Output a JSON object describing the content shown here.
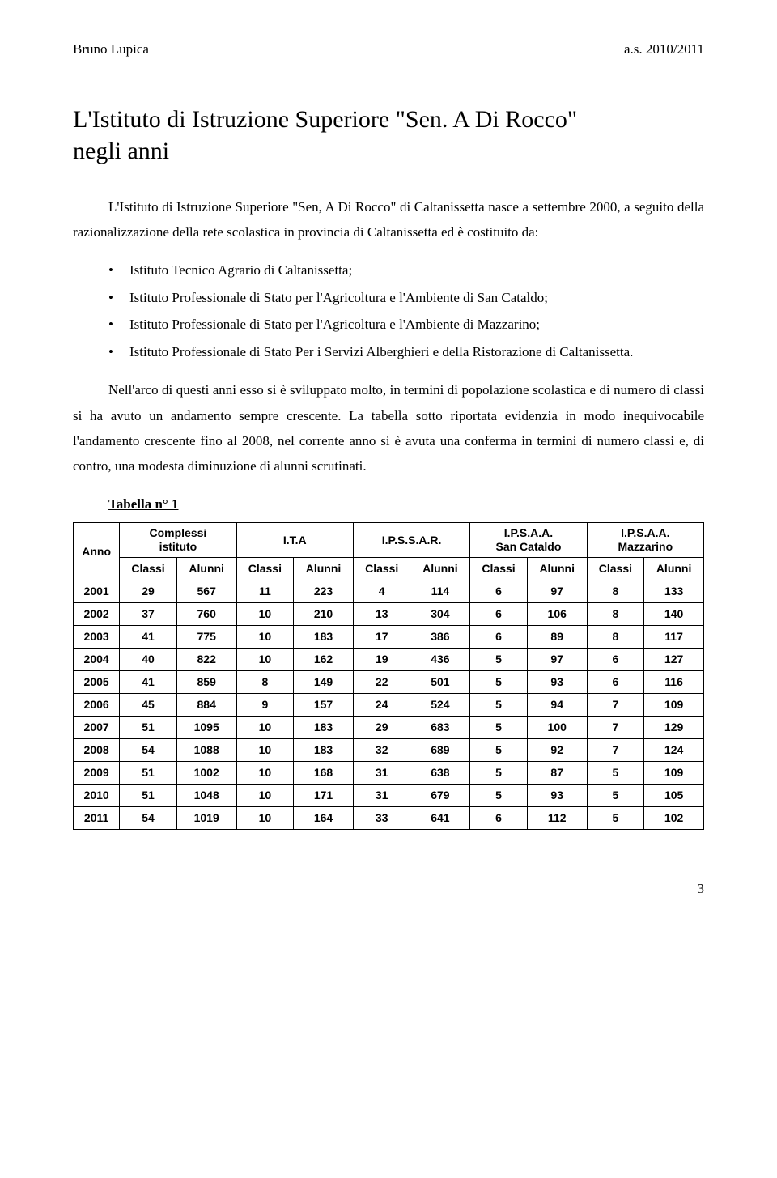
{
  "header": {
    "left": "Bruno Lupica",
    "right": "a.s. 2010/2011"
  },
  "title_line1": "L'Istituto di Istruzione Superiore \"Sen. A Di Rocco\"",
  "title_line2": "negli anni",
  "intro": "L'Istituto di Istruzione Superiore \"Sen, A Di Rocco\" di Caltanissetta nasce a settembre 2000, a seguito della razionalizzazione della rete scolastica in provincia di Caltanissetta ed è costituito da:",
  "bullets": [
    "Istituto Tecnico Agrario di Caltanissetta;",
    "Istituto Professionale di Stato per l'Agricoltura e l'Ambiente di San Cataldo;",
    "Istituto Professionale di Stato per l'Agricoltura e l'Ambiente di Mazzarino;",
    "Istituto Professionale di Stato Per i Servizi Alberghieri e della Ristorazione di Caltanissetta."
  ],
  "para2": "Nell'arco di questi anni esso si è sviluppato molto, in termini di popolazione scolastica e di numero di classi si ha avuto un andamento sempre crescente. La tabella sotto riportata evidenzia in modo inequivocabile l'andamento crescente fino al 2008, nel corrente anno si è avuta una conferma in termini di numero classi e, di contro, una modesta diminuzione di alunni scrutinati.",
  "table_caption": "Tabella n° 1",
  "table": {
    "row_header": "Anno",
    "groups": [
      {
        "label": "Complessi\nistituto"
      },
      {
        "label": "I.T.A"
      },
      {
        "label": "I.P.S.S.A.R."
      },
      {
        "label": "I.P.S.A.A.\nSan Cataldo"
      },
      {
        "label": "I.P.S.A.A.\nMazzarino"
      }
    ],
    "sub_cols": [
      "Classi",
      "Alunni"
    ],
    "rows": [
      {
        "year": "2001",
        "cells": [
          "29",
          "567",
          "11",
          "223",
          "4",
          "114",
          "6",
          "97",
          "8",
          "133"
        ]
      },
      {
        "year": "2002",
        "cells": [
          "37",
          "760",
          "10",
          "210",
          "13",
          "304",
          "6",
          "106",
          "8",
          "140"
        ]
      },
      {
        "year": "2003",
        "cells": [
          "41",
          "775",
          "10",
          "183",
          "17",
          "386",
          "6",
          "89",
          "8",
          "117"
        ]
      },
      {
        "year": "2004",
        "cells": [
          "40",
          "822",
          "10",
          "162",
          "19",
          "436",
          "5",
          "97",
          "6",
          "127"
        ]
      },
      {
        "year": "2005",
        "cells": [
          "41",
          "859",
          "8",
          "149",
          "22",
          "501",
          "5",
          "93",
          "6",
          "116"
        ]
      },
      {
        "year": "2006",
        "cells": [
          "45",
          "884",
          "9",
          "157",
          "24",
          "524",
          "5",
          "94",
          "7",
          "109"
        ]
      },
      {
        "year": "2007",
        "cells": [
          "51",
          "1095",
          "10",
          "183",
          "29",
          "683",
          "5",
          "100",
          "7",
          "129"
        ]
      },
      {
        "year": "2008",
        "cells": [
          "54",
          "1088",
          "10",
          "183",
          "32",
          "689",
          "5",
          "92",
          "7",
          "124"
        ]
      },
      {
        "year": "2009",
        "cells": [
          "51",
          "1002",
          "10",
          "168",
          "31",
          "638",
          "5",
          "87",
          "5",
          "109"
        ]
      },
      {
        "year": "2010",
        "cells": [
          "51",
          "1048",
          "10",
          "171",
          "31",
          "679",
          "5",
          "93",
          "5",
          "105"
        ]
      },
      {
        "year": "2011",
        "cells": [
          "54",
          "1019",
          "10",
          "164",
          "33",
          "641",
          "6",
          "112",
          "5",
          "102"
        ]
      }
    ]
  },
  "page_number": "3"
}
